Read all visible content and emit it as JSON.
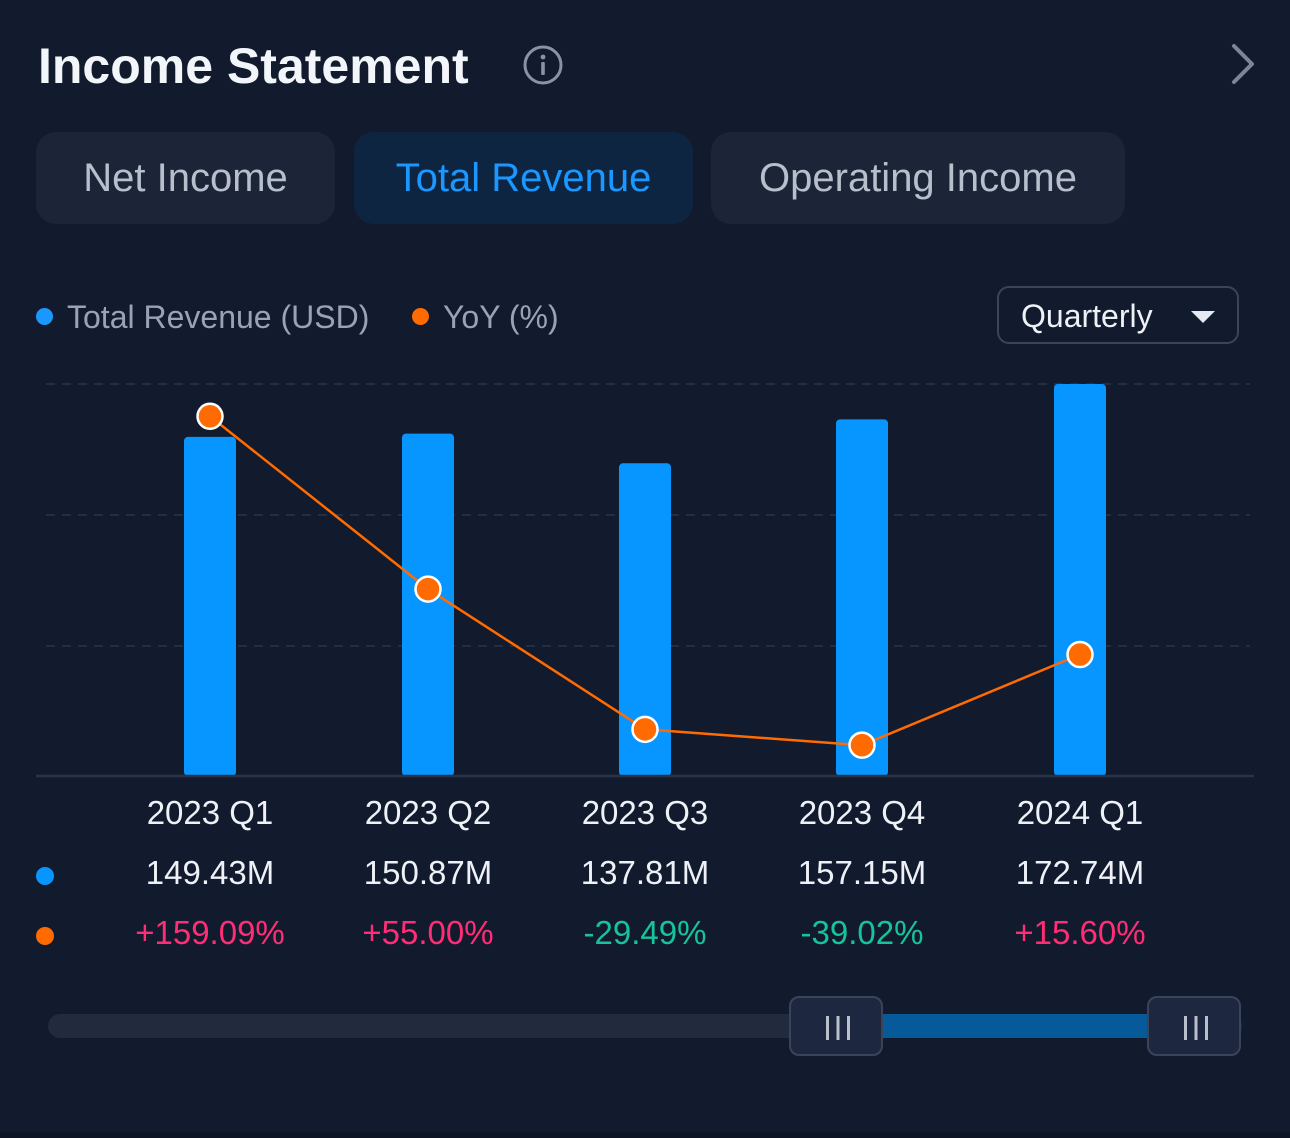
{
  "header": {
    "title": "Income Statement"
  },
  "tabs": [
    {
      "label": "Net Income",
      "active": false
    },
    {
      "label": "Total Revenue",
      "active": true
    },
    {
      "label": "Operating Income",
      "active": false
    }
  ],
  "legend": [
    {
      "label": "Total Revenue (USD)",
      "color": "#1a98ff"
    },
    {
      "label": "YoY (%)",
      "color": "#ff6b00"
    }
  ],
  "period_select": {
    "value": "Quarterly"
  },
  "colors": {
    "bar": "#0796ff",
    "line": "#ff6b00",
    "positive": "#ff2d75",
    "negative": "#16c39a"
  },
  "chart_data": {
    "type": "bar",
    "categories": [
      "2023 Q1",
      "2023 Q2",
      "2023 Q3",
      "2023 Q4",
      "2024 Q1"
    ],
    "series": [
      {
        "name": "Total Revenue (USD)",
        "type": "bar",
        "values": [
          149.43,
          150.87,
          137.81,
          157.15,
          172.74
        ],
        "labels": [
          "149.43M",
          "150.87M",
          "137.81M",
          "157.15M",
          "172.74M"
        ]
      },
      {
        "name": "YoY (%)",
        "type": "line",
        "values": [
          159.09,
          55.0,
          -29.49,
          -39.02,
          15.6
        ],
        "labels": [
          "+159.09%",
          "+55.00%",
          "-29.49%",
          "-39.02%",
          "+15.60%"
        ]
      }
    ],
    "bar_ylim": [
      0,
      172.74
    ],
    "line_ylim": [
      -57.6,
      178.54
    ],
    "grid": "dashed horizontal",
    "legend_position": "top-left"
  },
  "range_slider": {
    "start": 0.66,
    "end": 0.96
  }
}
